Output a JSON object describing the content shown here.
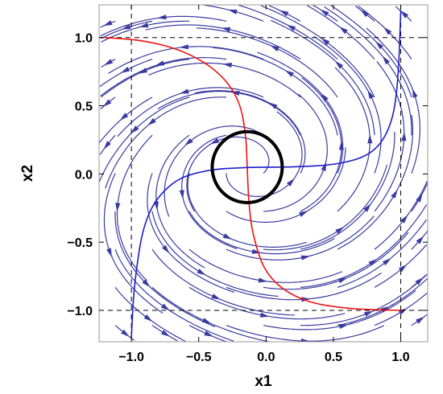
{
  "chart_data": {
    "type": "streamplot",
    "xlabel": "x1",
    "ylabel": "x2",
    "xlim": [
      -1.24,
      1.2
    ],
    "ylim": [
      -1.23,
      1.24
    ],
    "x_ticks": [
      {
        "value": -1.0,
        "label": "−1.0"
      },
      {
        "value": -0.5,
        "label": "−0.5"
      },
      {
        "value": 0.0,
        "label": "0.0"
      },
      {
        "value": 0.5,
        "label": "0.5"
      },
      {
        "value": 1.0,
        "label": "1.0"
      }
    ],
    "y_ticks": [
      {
        "value": 1.0,
        "label": "1.0"
      },
      {
        "value": 0.5,
        "label": "0.5"
      },
      {
        "value": 0.0,
        "label": "0.0"
      },
      {
        "value": -0.5,
        "label": "−0.5"
      },
      {
        "value": -1.0,
        "label": "−1.0"
      }
    ],
    "grid": false,
    "dashed_lines": {
      "x": [
        -1.0,
        1.0
      ],
      "y": [
        -1.0,
        1.0
      ]
    },
    "limit_cycle": {
      "center": [
        -0.14,
        0.05
      ],
      "radius": 0.26
    },
    "stable_manifold_red": [
      [
        -1.2,
        1.0
      ],
      [
        -0.9,
        0.98
      ],
      [
        -0.6,
        0.9
      ],
      [
        -0.35,
        0.75
      ],
      [
        -0.2,
        0.55
      ],
      [
        -0.15,
        0.3
      ],
      [
        -0.14,
        0.05
      ],
      [
        -0.13,
        -0.2
      ],
      [
        -0.1,
        -0.45
      ],
      [
        0.0,
        -0.75
      ],
      [
        0.25,
        -0.93
      ],
      [
        0.6,
        -0.99
      ],
      [
        1.0,
        -1.0
      ]
    ],
    "unstable_manifold_blue": [
      [
        -1.0,
        -1.2
      ],
      [
        -0.98,
        -0.8
      ],
      [
        -0.9,
        -0.3
      ],
      [
        -0.7,
        -0.05
      ],
      [
        -0.45,
        0.03
      ],
      [
        -0.14,
        0.05
      ],
      [
        0.2,
        0.05
      ],
      [
        0.55,
        0.07
      ],
      [
        0.8,
        0.15
      ],
      [
        0.93,
        0.35
      ],
      [
        0.98,
        0.65
      ],
      [
        1.0,
        1.2
      ]
    ],
    "colors": {
      "stream": "#3a3aa0",
      "manifold_red": "#ee1111",
      "manifold_blue": "#1c1ccc",
      "cycle": "#000000",
      "frame": "#999999"
    }
  }
}
